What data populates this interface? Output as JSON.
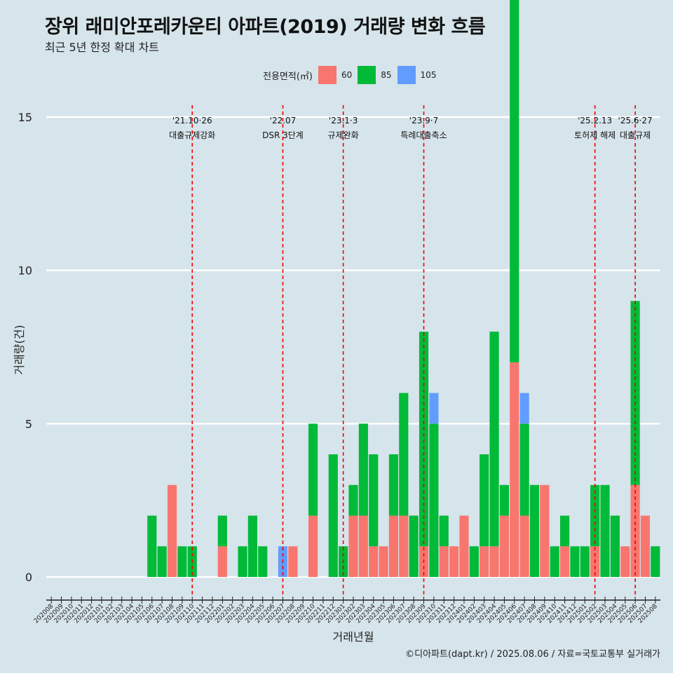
{
  "title": "장위 래미안포레카운티 아파트(2019) 거래량 변화 흐름",
  "subtitle": "최근 5년 한정 확대 차트",
  "caption": "©디아파트(dapt.kr) / 2025.08.06 / 자료=국토교통부 실거래가",
  "legend": {
    "title": "전용면적(㎡)",
    "items": [
      {
        "label": "60",
        "color": "#f8766d"
      },
      {
        "label": "85",
        "color": "#00ba38"
      },
      {
        "label": "105",
        "color": "#619cff"
      }
    ]
  },
  "chart_data": {
    "type": "bar",
    "xlabel": "거래년월",
    "ylabel": "거래량(건)",
    "ylim": [
      0,
      15
    ],
    "yticks": [
      0,
      5,
      10,
      15
    ],
    "categories": [
      "202008",
      "202009",
      "202010",
      "202011",
      "202012",
      "202101",
      "202102",
      "202103",
      "202104",
      "202105",
      "202106",
      "202107",
      "202108",
      "202109",
      "202110",
      "202111",
      "202112",
      "202201",
      "202202",
      "202203",
      "202204",
      "202205",
      "202206",
      "202207",
      "202208",
      "202209",
      "202210",
      "202211",
      "202212",
      "202301",
      "202302",
      "202303",
      "202304",
      "202305",
      "202306",
      "202307",
      "202308",
      "202309",
      "202310",
      "202311",
      "202312",
      "202401",
      "202402",
      "202403",
      "202404",
      "202405",
      "202406",
      "202407",
      "202408",
      "202409",
      "202410",
      "202411",
      "202412",
      "202501",
      "202502",
      "202503",
      "202504",
      "202505",
      "202506",
      "202507",
      "202508"
    ],
    "series": [
      {
        "name": "60",
        "color": "#f8766d",
        "values": [
          0,
          0,
          0,
          0,
          0,
          0,
          0,
          0,
          0,
          0,
          0,
          0,
          3,
          0,
          0,
          0,
          0,
          1,
          0,
          0,
          0,
          0,
          0,
          0,
          1,
          0,
          2,
          0,
          0,
          0,
          2,
          2,
          1,
          1,
          2,
          2,
          0,
          1,
          0,
          1,
          1,
          2,
          0,
          1,
          1,
          2,
          7,
          2,
          0,
          3,
          0,
          1,
          0,
          0,
          1,
          0,
          0,
          1,
          3,
          2,
          0
        ]
      },
      {
        "name": "85",
        "color": "#00ba38",
        "values": [
          0,
          0,
          0,
          0,
          0,
          0,
          0,
          0,
          0,
          0,
          2,
          1,
          0,
          1,
          1,
          0,
          0,
          1,
          0,
          1,
          2,
          1,
          0,
          0,
          0,
          0,
          3,
          0,
          4,
          1,
          1,
          3,
          3,
          0,
          2,
          4,
          2,
          7,
          5,
          1,
          0,
          0,
          1,
          3,
          7,
          1,
          14,
          3,
          3,
          0,
          1,
          1,
          1,
          1,
          2,
          3,
          2,
          0,
          6,
          0,
          1
        ]
      },
      {
        "name": "105",
        "color": "#619cff",
        "values": [
          0,
          0,
          0,
          0,
          0,
          0,
          0,
          0,
          0,
          0,
          0,
          0,
          0,
          0,
          0,
          0,
          0,
          0,
          0,
          0,
          0,
          0,
          0,
          1,
          0,
          0,
          0,
          0,
          0,
          0,
          0,
          0,
          0,
          0,
          0,
          0,
          0,
          0,
          1,
          0,
          0,
          0,
          0,
          0,
          0,
          0,
          0,
          1,
          0,
          0,
          0,
          0,
          0,
          0,
          0,
          0,
          0,
          0,
          0,
          0,
          0
        ]
      }
    ],
    "annotations": [
      {
        "category": "202110",
        "date": "'21.10·26",
        "text": "대출규제강화"
      },
      {
        "category": "202207",
        "date": "'22.07",
        "text": "DSR 3단계"
      },
      {
        "category": "202301",
        "date": "'23.1·3",
        "text": "규제완화"
      },
      {
        "category": "202309",
        "date": "'23.9·7",
        "text": "특례대출축소"
      },
      {
        "category": "202502",
        "date": "'25.2.13",
        "text": "토허제 해제"
      },
      {
        "category": "202506",
        "date": "'25.6·27",
        "text": "대출규제"
      }
    ],
    "grid": true,
    "legend_position": "top"
  }
}
